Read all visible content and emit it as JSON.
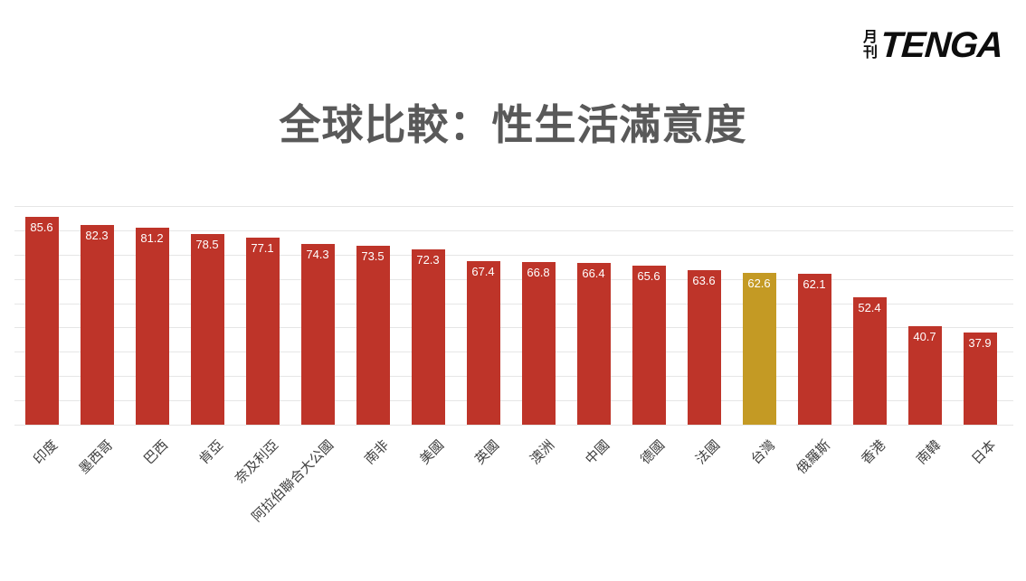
{
  "logo": {
    "prefix_top": "月",
    "prefix_bottom": "刊",
    "brand": "TENGA"
  },
  "title": "全球比較：性生活滿意度",
  "chart_data": {
    "type": "bar",
    "title": "全球比較：性生活滿意度",
    "categories": [
      "印度",
      "墨西哥",
      "巴西",
      "肯亞",
      "奈及利亞",
      "阿拉伯聯合大公國",
      "南非",
      "美國",
      "英國",
      "澳洲",
      "中國",
      "德國",
      "法國",
      "台灣",
      "俄羅斯",
      "香港",
      "南韓",
      "日本"
    ],
    "values": [
      85.6,
      82.3,
      81.2,
      78.5,
      77.1,
      74.3,
      73.5,
      72.3,
      67.4,
      66.8,
      66.4,
      65.6,
      63.6,
      62.6,
      62.1,
      52.4,
      40.7,
      37.9
    ],
    "bar_color": "#be3429",
    "highlight_color": "#c49a24",
    "highlight_index": 13,
    "highlight_category": "台灣",
    "value_label_color": "#ffffff",
    "xlabel": "",
    "ylabel": "",
    "ylim": [
      0,
      90
    ],
    "grid": true,
    "legend": "none",
    "value_labels_position": "inside-top"
  }
}
